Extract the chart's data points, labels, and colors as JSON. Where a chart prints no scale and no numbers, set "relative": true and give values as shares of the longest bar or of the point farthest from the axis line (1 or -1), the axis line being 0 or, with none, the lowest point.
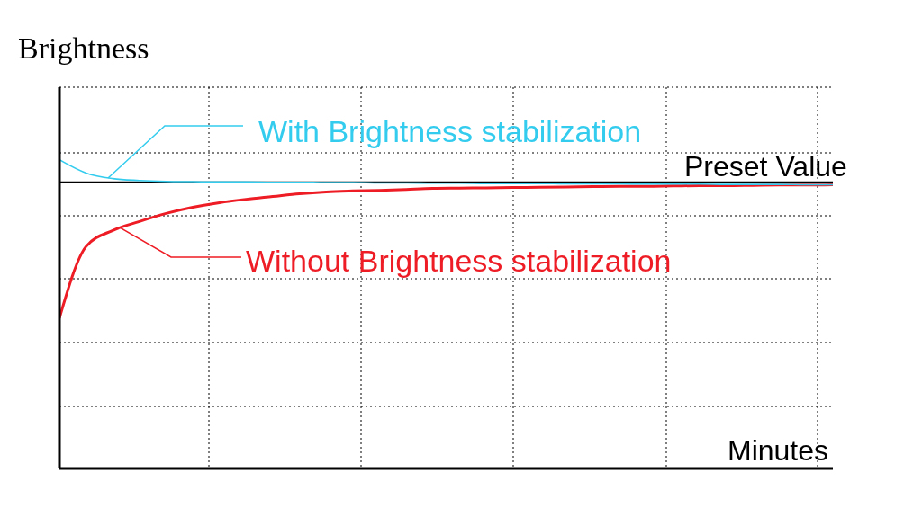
{
  "chart_data": {
    "type": "line",
    "relative": true,
    "xlabel": "Minutes",
    "ylabel": "Brightness",
    "categories": [
      null,
      null,
      null,
      null,
      null,
      null,
      null,
      null,
      null,
      null,
      null,
      null,
      null,
      null,
      null,
      null,
      null,
      null,
      null,
      null,
      null,
      null,
      null,
      null,
      null,
      null,
      null,
      null,
      null,
      null
    ],
    "series": [
      {
        "name": "With Brightness stabilization",
        "color": "#33ccee",
        "values": [
          1.0,
          0.957,
          0.939,
          0.933,
          0.93,
          0.929,
          0.928,
          0.928,
          0.927,
          0.927,
          0.926,
          0.926,
          0.925,
          0.925,
          0.924,
          0.924,
          0.923,
          0.923,
          0.923,
          0.922,
          0.922,
          0.922,
          0.921,
          0.921,
          0.921,
          0.92,
          0.92,
          0.92,
          0.919,
          0.919
        ]
      },
      {
        "name": "Without Brightness stabilization",
        "color": "#ee1c25",
        "values": [
          0.487,
          0.719,
          0.771,
          0.8,
          0.826,
          0.846,
          0.861,
          0.872,
          0.881,
          0.89,
          0.896,
          0.899,
          0.901,
          0.904,
          0.907,
          0.908,
          0.909,
          0.91,
          0.911,
          0.912,
          0.913,
          0.914,
          0.914,
          0.915,
          0.916,
          0.916,
          0.917,
          0.918,
          0.918,
          0.919
        ]
      }
    ],
    "ref_lines": [
      {
        "axis": "y",
        "value": 0.928,
        "label": "Preset Value",
        "color": "#000000"
      }
    ],
    "grid": true,
    "line_style": "solid",
    "marker": "none",
    "legend": "top"
  }
}
